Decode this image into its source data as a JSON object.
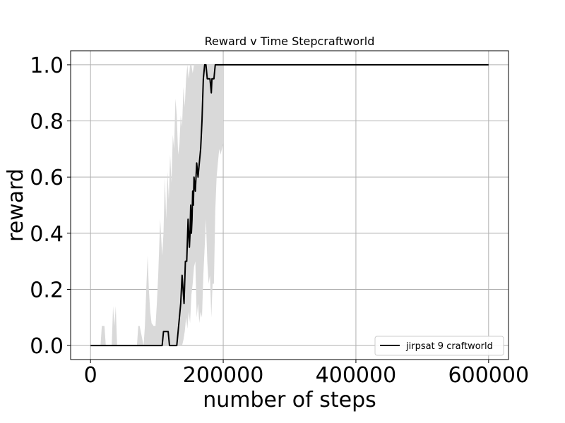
{
  "chart_data": {
    "type": "line",
    "title": "Reward v Time Stepcraftworld",
    "xlabel": "number of steps",
    "ylabel": "reward",
    "xlim": [
      -30000,
      630000
    ],
    "ylim": [
      -0.05,
      1.05
    ],
    "xticks": [
      0,
      200000,
      400000,
      600000
    ],
    "xtick_labels": [
      "0",
      "200000",
      "400000",
      "600000"
    ],
    "yticks": [
      0.0,
      0.2,
      0.4,
      0.6,
      0.8,
      1.0
    ],
    "ytick_labels": [
      "0.0",
      "0.2",
      "0.4",
      "0.6",
      "0.8",
      "1.0"
    ],
    "grid": true,
    "legend_position": "lower-right",
    "colors": {
      "line": "#000000",
      "band": "#d9d9d9",
      "grid": "#b0b0b0"
    },
    "series": [
      {
        "name": "jirpsat 9 craftworld",
        "x": [
          0,
          108000,
          110000,
          117000,
          119000,
          130000,
          132000,
          136000,
          138000,
          141000,
          143000,
          145000,
          147000,
          149000,
          150000,
          151000,
          152000,
          153000,
          154000,
          155000,
          156000,
          158000,
          160000,
          162000,
          164000,
          166000,
          168000,
          170000,
          172000,
          174000,
          176000,
          178000,
          180000,
          182000,
          183000,
          184000,
          186000,
          188000,
          190000,
          200000,
          600000
        ],
        "y": [
          0.0,
          0.0,
          0.05,
          0.05,
          0.0,
          0.0,
          0.05,
          0.15,
          0.25,
          0.15,
          0.3,
          0.3,
          0.45,
          0.35,
          0.4,
          0.5,
          0.4,
          0.45,
          0.55,
          0.5,
          0.6,
          0.55,
          0.65,
          0.6,
          0.65,
          0.7,
          0.8,
          0.95,
          1.0,
          1.0,
          0.95,
          0.95,
          0.95,
          0.9,
          0.95,
          0.95,
          0.95,
          1.0,
          1.0,
          1.0,
          1.0
        ],
        "band_x": [
          0,
          15000,
          17000,
          21000,
          23000,
          32000,
          34000,
          36000,
          38000,
          40000,
          70000,
          72000,
          74000,
          80000,
          82000,
          84000,
          86000,
          88000,
          90000,
          92000,
          95000,
          98000,
          100000,
          102000,
          105000,
          108000,
          110000,
          112000,
          114000,
          116000,
          118000,
          120000,
          122000,
          124000,
          126000,
          128000,
          130000,
          132000,
          134000,
          136000,
          138000,
          140000,
          142000,
          144000,
          146000,
          148000,
          150000,
          152000,
          154000,
          156000,
          158000,
          160000,
          162000,
          164000,
          166000,
          168000,
          170000,
          172000,
          174000,
          176000,
          178000,
          180000,
          182000,
          184000,
          186000,
          188000,
          190000,
          192000,
          194000,
          196000,
          198000,
          200000
        ],
        "band_upper": [
          0.0,
          0.0,
          0.07,
          0.07,
          0.0,
          0.0,
          0.14,
          0.07,
          0.14,
          0.0,
          0.0,
          0.07,
          0.07,
          0.0,
          0.07,
          0.2,
          0.32,
          0.2,
          0.12,
          0.08,
          0.07,
          0.07,
          0.15,
          0.25,
          0.45,
          0.32,
          0.4,
          0.6,
          0.45,
          0.62,
          0.52,
          0.68,
          0.58,
          0.75,
          0.7,
          0.88,
          0.82,
          0.68,
          0.72,
          0.82,
          0.78,
          0.92,
          0.85,
          0.95,
          1.0,
          0.95,
          1.0,
          1.0,
          0.97,
          1.0,
          1.0,
          1.0,
          1.0,
          1.0,
          1.0,
          1.0,
          1.0,
          1.0,
          1.0,
          1.0,
          1.0,
          1.0,
          1.0,
          1.0,
          1.0,
          1.0,
          1.0,
          1.0,
          1.0,
          1.0,
          1.0,
          1.0
        ],
        "band_lower": [
          0.0,
          0.0,
          0.0,
          0.0,
          0.0,
          0.0,
          0.0,
          0.0,
          0.0,
          0.0,
          0.0,
          0.0,
          0.0,
          0.0,
          0.0,
          0.0,
          0.0,
          0.0,
          0.0,
          0.0,
          0.0,
          0.0,
          0.0,
          0.0,
          0.0,
          0.0,
          0.0,
          0.0,
          0.0,
          0.0,
          0.0,
          0.0,
          0.0,
          0.0,
          0.0,
          0.0,
          0.0,
          0.0,
          0.0,
          0.0,
          0.0,
          0.02,
          0.05,
          0.1,
          0.06,
          0.12,
          0.08,
          0.18,
          0.22,
          0.28,
          0.3,
          0.1,
          0.15,
          0.08,
          0.12,
          0.1,
          0.25,
          0.35,
          0.45,
          0.3,
          0.22,
          0.25,
          0.1,
          0.22,
          0.22,
          0.48,
          0.6,
          0.65,
          0.7,
          0.68,
          0.7,
          0.72
        ]
      }
    ]
  }
}
